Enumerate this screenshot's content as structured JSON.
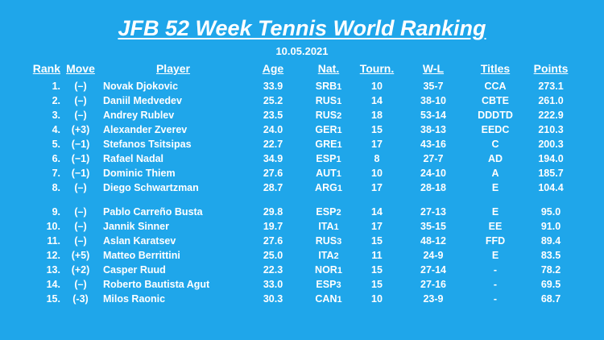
{
  "title": "JFB 52 Week Tennis World Ranking",
  "date": "10.05.2021",
  "headers": {
    "rank": "Rank",
    "move": "Move",
    "player": "Player",
    "age": "Age",
    "nat": "Nat.",
    "tourn": "Tourn.",
    "wl": "W-L",
    "titles": "Titles",
    "points": "Points"
  },
  "rows": [
    {
      "rank": "1.",
      "move": "(–)",
      "player": "Novak Djokovic",
      "age": "33.9",
      "nat": "SRB",
      "nat_rank": "1",
      "tourn": "10",
      "wl": "35-7",
      "titles": "CCA",
      "points": "273.1"
    },
    {
      "rank": "2.",
      "move": "(–)",
      "player": "Daniil Medvedev",
      "age": "25.2",
      "nat": "RUS",
      "nat_rank": "1",
      "tourn": "14",
      "wl": "38-10",
      "titles": "CBTE",
      "points": "261.0"
    },
    {
      "rank": "3.",
      "move": "(–)",
      "player": "Andrey Rublev",
      "age": "23.5",
      "nat": "RUS",
      "nat_rank": "2",
      "tourn": "18",
      "wl": "53-14",
      "titles": "DDDTD",
      "points": "222.9"
    },
    {
      "rank": "4.",
      "move": "(+3)",
      "player": "Alexander Zverev",
      "age": "24.0",
      "nat": "GER",
      "nat_rank": "1",
      "tourn": "15",
      "wl": "38-13",
      "titles": "EEDC",
      "points": "210.3"
    },
    {
      "rank": "5.",
      "move": "(−1)",
      "player": "Stefanos Tsitsipas",
      "age": "22.7",
      "nat": "GRE",
      "nat_rank": "1",
      "tourn": "17",
      "wl": "43-16",
      "titles": "C",
      "points": "200.3"
    },
    {
      "rank": "6.",
      "move": "(−1)",
      "player": "Rafael Nadal",
      "age": "34.9",
      "nat": "ESP",
      "nat_rank": "1",
      "tourn": "8",
      "wl": "27-7",
      "titles": "AD",
      "points": "194.0"
    },
    {
      "rank": "7.",
      "move": "(−1)",
      "player": "Dominic Thiem",
      "age": "27.6",
      "nat": "AUT",
      "nat_rank": "1",
      "tourn": "10",
      "wl": "24-10",
      "titles": "A",
      "points": "185.7"
    },
    {
      "rank": "8.",
      "move": "(–)",
      "player": "Diego Schwartzman",
      "age": "28.7",
      "nat": "ARG",
      "nat_rank": "1",
      "tourn": "17",
      "wl": "28-18",
      "titles": "E",
      "points": "104.4"
    },
    {
      "rank": "9.",
      "move": "(–)",
      "player": "Pablo Carreño Busta",
      "age": "29.8",
      "nat": "ESP",
      "nat_rank": "2",
      "tourn": "14",
      "wl": "27-13",
      "titles": "E",
      "points": "95.0"
    },
    {
      "rank": "10.",
      "move": "(–)",
      "player": "Jannik Sinner",
      "age": "19.7",
      "nat": "ITA",
      "nat_rank": "1",
      "tourn": "17",
      "wl": "35-15",
      "titles": "EE",
      "points": "91.0"
    },
    {
      "rank": "11.",
      "move": "(–)",
      "player": "Aslan Karatsev",
      "age": "27.6",
      "nat": "RUS",
      "nat_rank": "3",
      "tourn": "15",
      "wl": "48-12",
      "titles": "FFD",
      "points": "89.4"
    },
    {
      "rank": "12.",
      "move": "(+5)",
      "player": "Matteo Berrittini",
      "age": "25.0",
      "nat": "ITA",
      "nat_rank": "2",
      "tourn": "11",
      "wl": "24-9",
      "titles": "E",
      "points": "83.5"
    },
    {
      "rank": "13.",
      "move": "(+2)",
      "player": "Casper Ruud",
      "age": "22.3",
      "nat": "NOR",
      "nat_rank": "1",
      "tourn": "15",
      "wl": "27-14",
      "titles": "-",
      "points": "78.2"
    },
    {
      "rank": "14.",
      "move": "(–)",
      "player": "Roberto Bautista Agut",
      "age": "33.0",
      "nat": "ESP",
      "nat_rank": "3",
      "tourn": "15",
      "wl": "27-16",
      "titles": "-",
      "points": "69.5"
    },
    {
      "rank": "15.",
      "move": "(-3)",
      "player": "Milos Raonic",
      "age": "30.3",
      "nat": "CAN",
      "nat_rank": "1",
      "tourn": "10",
      "wl": "23-9",
      "titles": "-",
      "points": "68.7"
    }
  ],
  "colors": {
    "background": "#1fa6ea",
    "text": "#ffffff"
  }
}
